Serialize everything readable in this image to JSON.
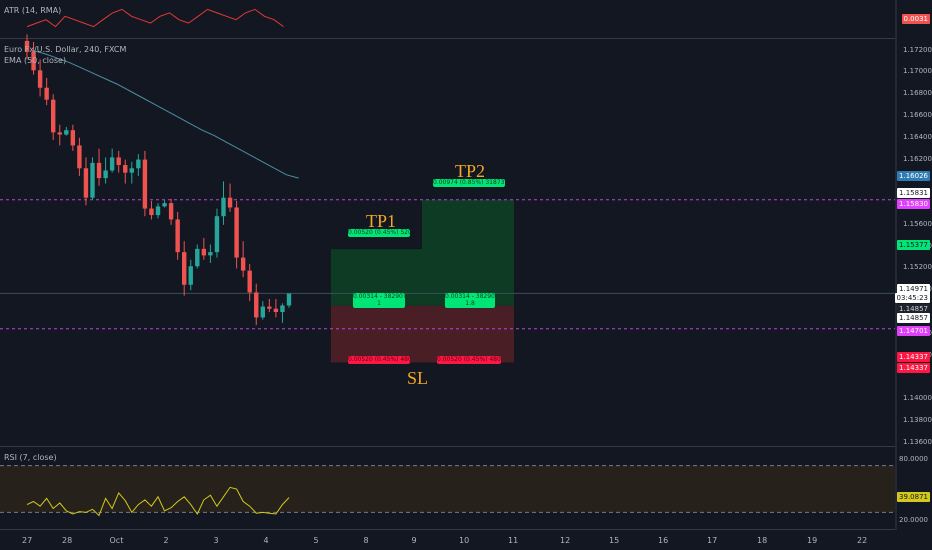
{
  "atr": {
    "title": "ATR (14, RMA)",
    "value": "0.0031"
  },
  "main": {
    "symbol": "Euro Fx/U.S. Dollar, 240, FXCM",
    "ema_title": "EMA (50, close)",
    "price_axis": [
      "1.17200",
      "1.17000",
      "1.16800",
      "1.16600",
      "1.16400",
      "1.16200",
      "1.15600",
      "1.15400",
      "1.15200",
      "1.15000",
      "1.14600",
      "1.14400",
      "1.14000",
      "1.13800",
      "1.13600"
    ],
    "tags": [
      {
        "text": "1.16026",
        "bg": "#2f7cb3",
        "fg": "#ffffff"
      },
      {
        "text": "1.15831",
        "bg": "#ffffff",
        "fg": "#131722"
      },
      {
        "text": "1.15830",
        "bg": "#e040fb",
        "fg": "#ffffff"
      },
      {
        "text": "1.15377",
        "bg": "#00e676",
        "fg": "#131722"
      },
      {
        "text": "1.14971",
        "bg": "#ffffff",
        "fg": "#131722"
      },
      {
        "text": "03:45:23",
        "bg": "#ffffff",
        "fg": "#131722"
      },
      {
        "text": "1.14857",
        "bg": "#1e222d",
        "fg": "#d1d4dc"
      },
      {
        "text": "1.14857",
        "bg": "#ffffff",
        "fg": "#131722"
      },
      {
        "text": "1.14701",
        "bg": "#e040fb",
        "fg": "#ffffff"
      },
      {
        "text": "1.14337",
        "bg": "#ff1744",
        "fg": "#ffffff"
      },
      {
        "text": "1.14337",
        "bg": "#ff1744",
        "fg": "#ffffff"
      }
    ],
    "tp1": "TP1",
    "tp2": "TP2",
    "sl": "SL",
    "tp1_box": "0.00520 (0.45%) 52000",
    "tp2_box": "0.00974 (0.85%) 31873.07",
    "entry1_box": "0.00314 - 38290?\n1",
    "entry2_box": "0.00314 - 38290?\n1.8",
    "sl1_box": "0.00520 (0.45%) 48000",
    "sl2_box": "0.00520 (0.45%) 48000"
  },
  "rsi": {
    "title": "RSI (7, close)",
    "value": "39.0871",
    "levels": [
      "80.0000",
      "20.0000"
    ]
  },
  "time_axis": [
    "27",
    "28",
    "Oct",
    "2",
    "3",
    "4",
    "5",
    "8",
    "9",
    "10",
    "11",
    "12",
    "15",
    "16",
    "17",
    "18",
    "19",
    "22"
  ],
  "colors": {
    "up": "#26a69a",
    "down": "#ef5350",
    "ema": "#4a8fa3",
    "atr": "#e53935",
    "rsi": "#d4c81a",
    "dashed": "#c040e0",
    "tp": "#0d3b24",
    "sl": "#4a1e25"
  },
  "chart_data": {
    "type": "candlestick",
    "candles": [
      [
        1.1729,
        1.1735,
        1.1712,
        1.1719
      ],
      [
        1.1719,
        1.1728,
        1.1698,
        1.1702
      ],
      [
        1.1702,
        1.1712,
        1.1678,
        1.1686
      ],
      [
        1.1686,
        1.1695,
        1.167,
        1.1675
      ],
      [
        1.1675,
        1.168,
        1.1638,
        1.1645
      ],
      [
        1.1645,
        1.1652,
        1.1633,
        1.1643
      ],
      [
        1.1643,
        1.165,
        1.1642,
        1.1647
      ],
      [
        1.1647,
        1.1652,
        1.1628,
        1.1633
      ],
      [
        1.1633,
        1.164,
        1.1605,
        1.1612
      ],
      [
        1.1612,
        1.1622,
        1.1578,
        1.1585
      ],
      [
        1.1585,
        1.1622,
        1.1583,
        1.1617
      ],
      [
        1.1617,
        1.163,
        1.1596,
        1.1603
      ],
      [
        1.1603,
        1.1622,
        1.1598,
        1.161
      ],
      [
        1.161,
        1.163,
        1.1608,
        1.1622
      ],
      [
        1.1622,
        1.1628,
        1.1608,
        1.1615
      ],
      [
        1.1615,
        1.162,
        1.1598,
        1.1608
      ],
      [
        1.1608,
        1.1618,
        1.1598,
        1.1612
      ],
      [
        1.1612,
        1.1625,
        1.1605,
        1.162
      ],
      [
        1.162,
        1.1628,
        1.1568,
        1.1575
      ],
      [
        1.1575,
        1.1582,
        1.1565,
        1.1569
      ],
      [
        1.1569,
        1.158,
        1.1566,
        1.1577
      ],
      [
        1.1577,
        1.1583,
        1.1576,
        1.158
      ],
      [
        1.158,
        1.1584,
        1.156,
        1.1565
      ],
      [
        1.1565,
        1.1572,
        1.1528,
        1.1535
      ],
      [
        1.1535,
        1.1545,
        1.1495,
        1.1505
      ],
      [
        1.1505,
        1.1528,
        1.15,
        1.1522
      ],
      [
        1.1522,
        1.1542,
        1.152,
        1.1538
      ],
      [
        1.1538,
        1.1548,
        1.1528,
        1.1532
      ],
      [
        1.1532,
        1.1542,
        1.1525,
        1.1535
      ],
      [
        1.1535,
        1.1575,
        1.153,
        1.1568
      ],
      [
        1.1568,
        1.16,
        1.156,
        1.1585
      ],
      [
        1.1585,
        1.1598,
        1.1572,
        1.1576
      ],
      [
        1.1576,
        1.1582,
        1.152,
        1.153
      ],
      [
        1.153,
        1.1545,
        1.1512,
        1.1518
      ],
      [
        1.1518,
        1.1524,
        1.149,
        1.1498
      ],
      [
        1.1498,
        1.1506,
        1.1468,
        1.1475
      ],
      [
        1.1475,
        1.149,
        1.1473,
        1.1485
      ],
      [
        1.1485,
        1.1492,
        1.148,
        1.1483
      ],
      [
        1.1483,
        1.1492,
        1.1475,
        1.148
      ],
      [
        1.148,
        1.1488,
        1.147,
        1.1486
      ],
      [
        1.1486,
        1.1497,
        1.1484,
        1.1497
      ]
    ],
    "ema": [
      1.172,
      1.1717,
      1.1713,
      1.1709,
      1.1704,
      1.1699,
      1.1694,
      1.1689,
      1.1683,
      1.1677,
      1.1671,
      1.1665,
      1.1659,
      1.1653,
      1.1647,
      1.1642,
      1.1636,
      1.163,
      1.1624,
      1.1618,
      1.1612,
      1.1606,
      1.1603
    ],
    "rsi": [
      30,
      34,
      28,
      38,
      25,
      32,
      22,
      18,
      21,
      20,
      24,
      16,
      38,
      25,
      45,
      35,
      20,
      30,
      36,
      28,
      40,
      22,
      26,
      34,
      40,
      30,
      18,
      36,
      42,
      28,
      40,
      52,
      50,
      34,
      28,
      19,
      20,
      19,
      18,
      30,
      39
    ],
    "atr": [
      0.0031,
      0.0032,
      0.0033,
      0.0031,
      0.0034,
      0.0033,
      0.0032,
      0.0031,
      0.0033,
      0.0035,
      0.0036,
      0.0034,
      0.0033,
      0.0032,
      0.0034,
      0.0035,
      0.0033,
      0.0032,
      0.0034,
      0.0036,
      0.0035,
      0.0034,
      0.0033,
      0.0035,
      0.0036,
      0.0034,
      0.0033,
      0.0031
    ],
    "levels": {
      "tp2": 1.15831,
      "entry_zone_top": 1.14971,
      "entry": 1.14857,
      "entry_low": 1.14701,
      "tp1": 1.15377,
      "sl": 1.14337
    },
    "rsi_levels": [
      80,
      20
    ]
  }
}
